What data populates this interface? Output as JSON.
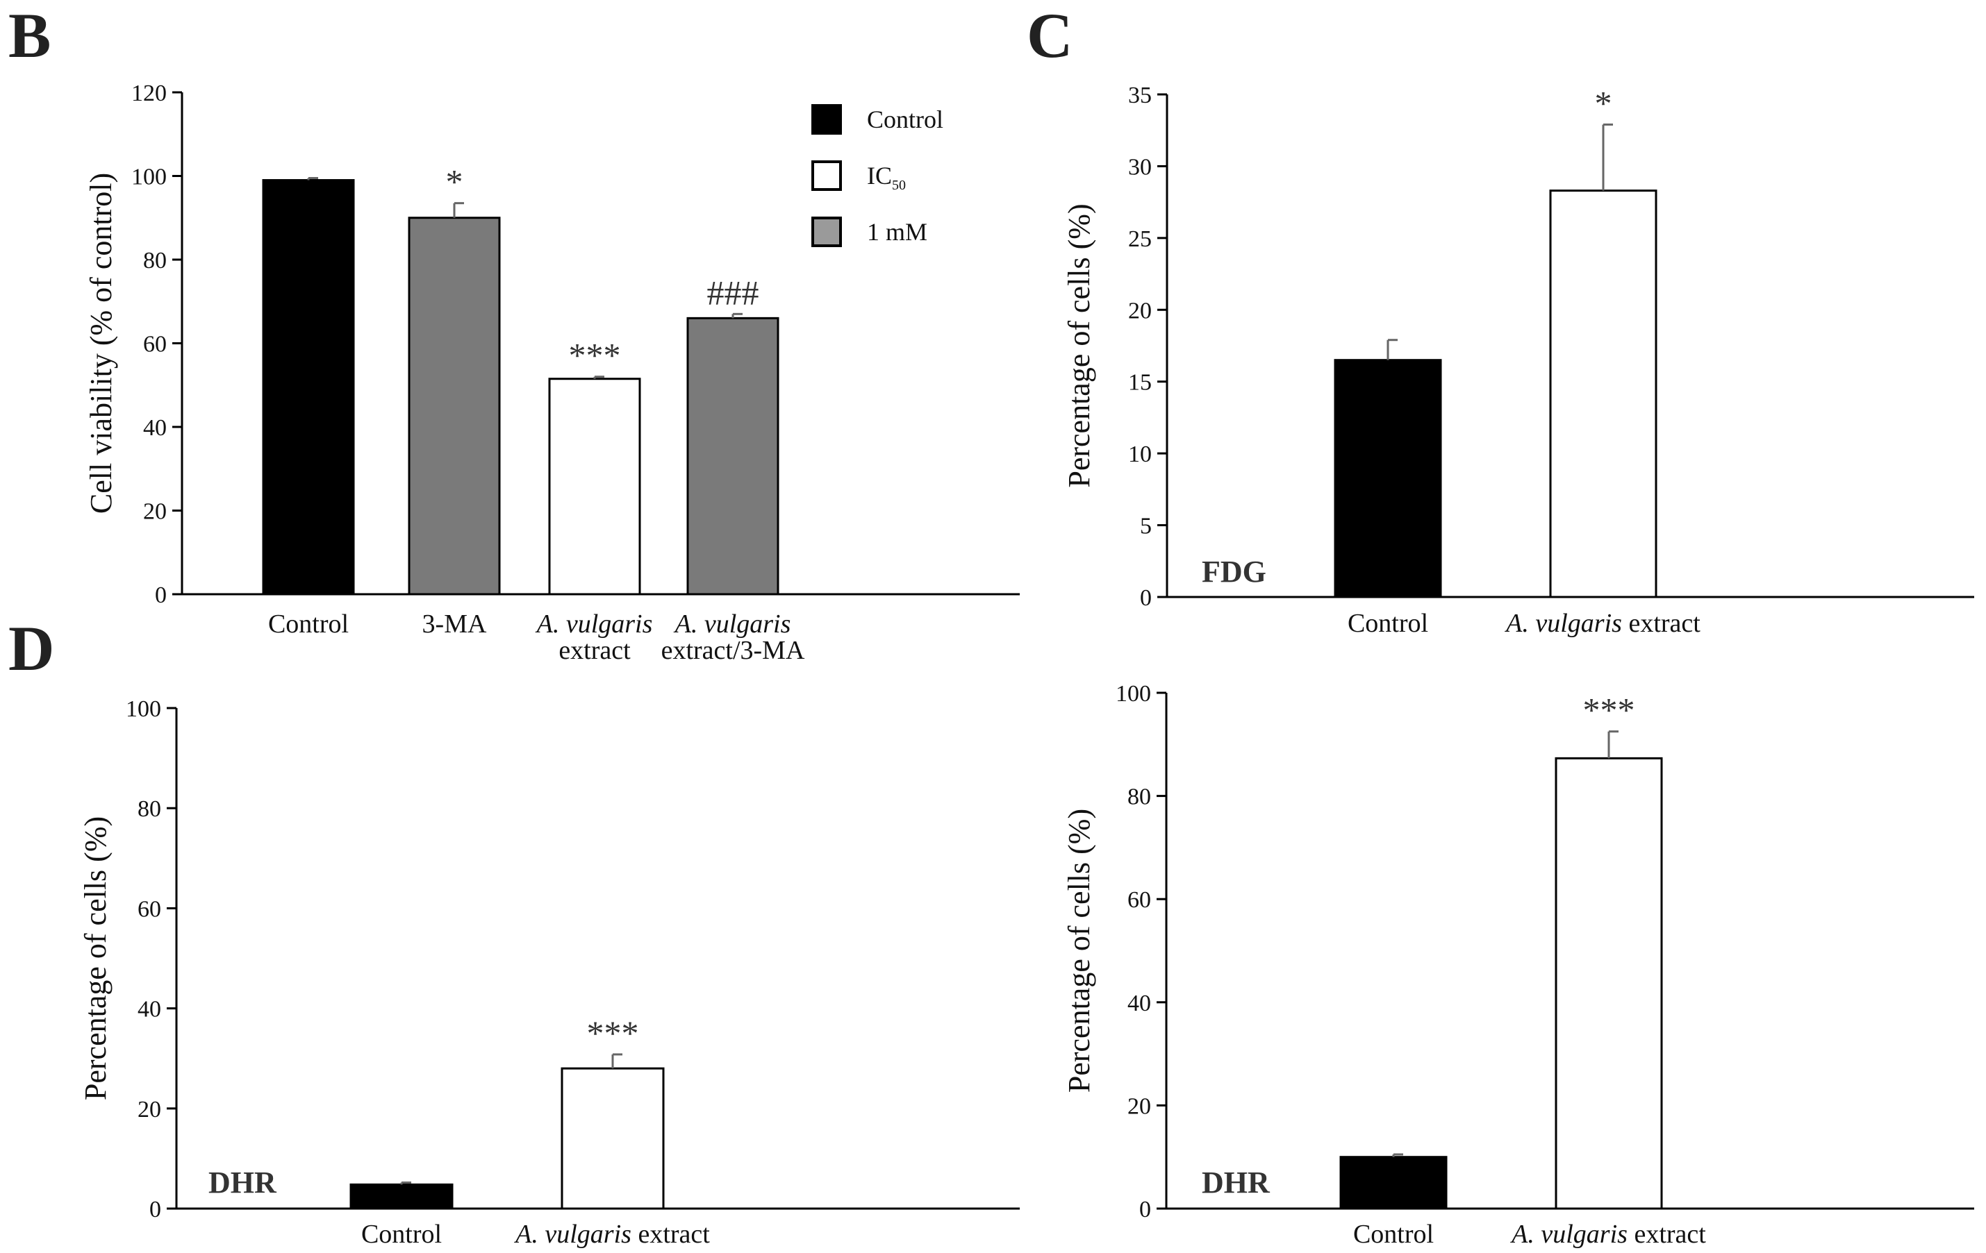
{
  "panel_letters": [
    "B",
    "C",
    "D"
  ],
  "chart_data": [
    {
      "type": "bar",
      "panel": "B",
      "ylabel": "Cell viability (% of control)",
      "ylim": [
        0,
        120
      ],
      "yticks": [
        0,
        20,
        40,
        60,
        80,
        100,
        120
      ],
      "categories": [
        {
          "lines": [
            [
              {
                "t": "Control",
                "i": false
              }
            ]
          ]
        },
        {
          "lines": [
            [
              {
                "t": "3-MA",
                "i": false
              }
            ]
          ]
        },
        {
          "lines": [
            [
              {
                "t": "A. vulgaris",
                "i": true
              }
            ],
            [
              {
                "t": "extract",
                "i": false
              }
            ]
          ]
        },
        {
          "lines": [
            [
              {
                "t": "A. vulgaris",
                "i": true
              }
            ],
            [
              {
                "t": "extract/3-MA",
                "i": false
              }
            ]
          ]
        }
      ],
      "values": [
        99,
        90,
        51.5,
        66
      ],
      "errors": [
        0.5,
        3.5,
        0.5,
        1
      ],
      "fills": [
        "#000000",
        "#7a7a7a",
        "#ffffff",
        "#7a7a7a"
      ],
      "annotations": [
        "",
        "*",
        "***",
        "###"
      ],
      "legend": [
        {
          "label": "Control",
          "sub": "",
          "color": "#000000"
        },
        {
          "label": "IC",
          "sub": "50",
          "color": "#ffffff"
        },
        {
          "label": "1 mM",
          "sub": "",
          "color": "#9a9a9a"
        }
      ]
    },
    {
      "type": "bar",
      "panel": "C",
      "ylabel": "Percentage of cells (%)",
      "ylim": [
        0,
        35
      ],
      "yticks": [
        0,
        5,
        10,
        15,
        20,
        25,
        30,
        35
      ],
      "categories": [
        {
          "lines": [
            [
              {
                "t": "Control",
                "i": false
              }
            ]
          ]
        },
        {
          "lines": [
            [
              {
                "t": "A. vulgaris",
                "i": true
              },
              {
                "t": " extract",
                "i": false
              }
            ]
          ]
        }
      ],
      "values": [
        16.5,
        28.3
      ],
      "errors": [
        1.4,
        4.6
      ],
      "fills": [
        "#000000",
        "#ffffff"
      ],
      "annotations": [
        "",
        "*"
      ],
      "corner_label": "FDG"
    },
    {
      "type": "bar",
      "panel": "D-left",
      "ylabel": "Percentage of cells (%)",
      "ylim": [
        0,
        100
      ],
      "yticks": [
        0,
        20,
        40,
        60,
        80,
        100
      ],
      "categories": [
        {
          "lines": [
            [
              {
                "t": "Control",
                "i": false
              }
            ]
          ]
        },
        {
          "lines": [
            [
              {
                "t": "A. vulgaris",
                "i": true
              },
              {
                "t": " extract",
                "i": false
              }
            ]
          ]
        }
      ],
      "values": [
        4.8,
        28
      ],
      "errors": [
        0.4,
        2.8
      ],
      "fills": [
        "#000000",
        "#ffffff"
      ],
      "annotations": [
        "",
        "***"
      ],
      "corner_label": "DHR"
    },
    {
      "type": "bar",
      "panel": "D-right",
      "ylabel": "Percentage of cells (%)",
      "ylim": [
        0,
        100
      ],
      "yticks": [
        0,
        20,
        40,
        60,
        80,
        100
      ],
      "categories": [
        {
          "lines": [
            [
              {
                "t": "Control",
                "i": false
              }
            ]
          ]
        },
        {
          "lines": [
            [
              {
                "t": "A. vulgaris",
                "i": true
              },
              {
                "t": " extract",
                "i": false
              }
            ]
          ]
        }
      ],
      "values": [
        10,
        87.3
      ],
      "errors": [
        0.5,
        5.2
      ],
      "fills": [
        "#000000",
        "#ffffff"
      ],
      "annotations": [
        "",
        "***"
      ],
      "corner_label": "DHR"
    }
  ]
}
